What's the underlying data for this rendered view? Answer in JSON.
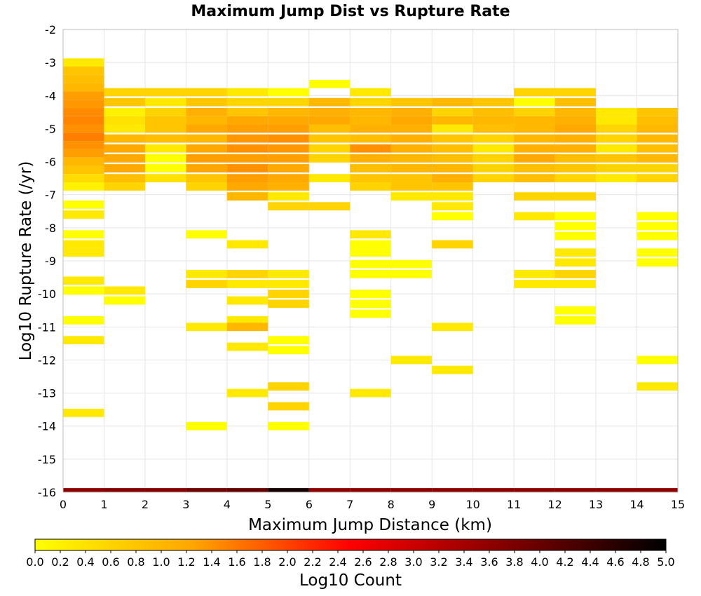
{
  "chart_data": {
    "type": "heatmap",
    "title": "Maximum Jump Dist vs Rupture Rate",
    "xlabel": "Maximum Jump Distance (km)",
    "ylabel": "Log10 Rupture Rate (/yr)",
    "xlim": [
      0,
      15
    ],
    "ylim": [
      -16,
      -2
    ],
    "x_ticks": [
      0,
      1,
      2,
      3,
      4,
      5,
      6,
      7,
      8,
      9,
      10,
      11,
      12,
      13,
      14,
      15
    ],
    "y_ticks": [
      -2,
      -3,
      -4,
      -5,
      -6,
      -7,
      -8,
      -9,
      -10,
      -11,
      -12,
      -13,
      -14,
      -15,
      -16
    ],
    "grid": true,
    "colorbar": {
      "label": "Log10 Count",
      "min": 0.0,
      "max": 5.0,
      "ticks": [
        "0.0",
        "0.2",
        "0.4",
        "0.6",
        "0.8",
        "1.0",
        "1.2",
        "1.4",
        "1.6",
        "1.8",
        "2.0",
        "2.2",
        "2.4",
        "2.6",
        "2.8",
        "3.0",
        "3.2",
        "3.4",
        "3.6",
        "3.8",
        "4.0",
        "4.2",
        "4.4",
        "4.6",
        "4.8",
        "5.0"
      ],
      "colors": [
        "#ffff00",
        "#ffa500",
        "#ff0000",
        "#800000",
        "#000000"
      ],
      "placement": "bottom"
    },
    "bin_height": 0.25,
    "columns": [
      {
        "x": 0,
        "cells": [
          [
            -3.0,
            0.3
          ],
          [
            -3.25,
            0.8
          ],
          [
            -3.5,
            0.9
          ],
          [
            -3.75,
            1.0
          ],
          [
            -4.0,
            1.3
          ],
          [
            -4.25,
            1.35
          ],
          [
            -4.5,
            1.45
          ],
          [
            -4.75,
            1.5
          ],
          [
            -5.0,
            1.4
          ],
          [
            -5.25,
            1.55
          ],
          [
            -5.5,
            1.4
          ],
          [
            -5.75,
            1.3
          ],
          [
            -6.0,
            1.0
          ],
          [
            -6.25,
            0.8
          ],
          [
            -6.5,
            0.5
          ],
          [
            -6.75,
            0.2
          ],
          [
            -7.3,
            0.0
          ],
          [
            -7.6,
            0.3
          ],
          [
            -8.2,
            0.0
          ],
          [
            -8.5,
            0.3
          ],
          [
            -8.75,
            0.3
          ],
          [
            -9.6,
            0.3
          ],
          [
            -9.9,
            0.0
          ],
          [
            -10.8,
            0.0
          ],
          [
            -11.4,
            0.3
          ],
          [
            -13.6,
            0.3
          ],
          [
            -16.0,
            3.6
          ]
        ]
      },
      {
        "x": 1,
        "cells": [
          [
            -3.9,
            0.6
          ],
          [
            -4.2,
            0.8
          ],
          [
            -4.5,
            0.2
          ],
          [
            -4.75,
            0.4
          ],
          [
            -5.0,
            0.3
          ],
          [
            -5.3,
            1.0
          ],
          [
            -5.6,
            1.2
          ],
          [
            -5.9,
            1.2
          ],
          [
            -6.2,
            1.2
          ],
          [
            -6.5,
            0.9
          ],
          [
            -6.75,
            0.6
          ],
          [
            -9.9,
            0.3
          ],
          [
            -10.2,
            0.0
          ],
          [
            -16.0,
            3.7
          ]
        ]
      },
      {
        "x": 2,
        "cells": [
          [
            -3.9,
            0.6
          ],
          [
            -4.2,
            0.3
          ],
          [
            -4.5,
            0.6
          ],
          [
            -4.75,
            0.8
          ],
          [
            -5.0,
            0.8
          ],
          [
            -5.3,
            0.9
          ],
          [
            -5.6,
            0.3
          ],
          [
            -5.9,
            0.0
          ],
          [
            -6.2,
            0.0
          ],
          [
            -6.5,
            0.4
          ],
          [
            -16.0,
            3.7
          ]
        ]
      },
      {
        "x": 3,
        "cells": [
          [
            -3.9,
            0.6
          ],
          [
            -4.2,
            0.8
          ],
          [
            -4.5,
            1.1
          ],
          [
            -4.75,
            1.0
          ],
          [
            -5.0,
            1.2
          ],
          [
            -5.3,
            1.0
          ],
          [
            -5.6,
            1.2
          ],
          [
            -5.9,
            1.3
          ],
          [
            -6.2,
            1.25
          ],
          [
            -6.5,
            0.8
          ],
          [
            -6.75,
            0.6
          ],
          [
            -8.2,
            0.0
          ],
          [
            -9.4,
            0.3
          ],
          [
            -9.7,
            0.6
          ],
          [
            -11.0,
            0.3
          ],
          [
            -14.0,
            0.0
          ],
          [
            -16.0,
            3.9
          ]
        ]
      },
      {
        "x": 4,
        "cells": [
          [
            -3.9,
            0.3
          ],
          [
            -4.2,
            0.6
          ],
          [
            -4.5,
            0.8
          ],
          [
            -4.75,
            1.2
          ],
          [
            -5.0,
            1.3
          ],
          [
            -5.3,
            1.35
          ],
          [
            -5.6,
            1.4
          ],
          [
            -5.9,
            1.3
          ],
          [
            -6.2,
            1.4
          ],
          [
            -6.5,
            1.3
          ],
          [
            -6.75,
            1.2
          ],
          [
            -7.05,
            1.0
          ],
          [
            -8.5,
            0.3
          ],
          [
            -9.4,
            0.6
          ],
          [
            -9.7,
            0.3
          ],
          [
            -10.2,
            0.3
          ],
          [
            -10.8,
            0.3
          ],
          [
            -11.0,
            1.0
          ],
          [
            -11.6,
            0.3
          ],
          [
            -13.0,
            0.3
          ],
          [
            -16.0,
            4.0
          ]
        ]
      },
      {
        "x": 5,
        "cells": [
          [
            -3.9,
            0.0
          ],
          [
            -4.2,
            0.6
          ],
          [
            -4.5,
            1.0
          ],
          [
            -4.75,
            1.2
          ],
          [
            -5.0,
            1.3
          ],
          [
            -5.3,
            1.4
          ],
          [
            -5.6,
            1.35
          ],
          [
            -5.9,
            1.3
          ],
          [
            -6.2,
            1.2
          ],
          [
            -6.5,
            1.2
          ],
          [
            -6.75,
            1.1
          ],
          [
            -7.05,
            0.3
          ],
          [
            -7.35,
            0.6
          ],
          [
            -9.4,
            0.3
          ],
          [
            -9.7,
            0.3
          ],
          [
            -10.0,
            0.6
          ],
          [
            -10.3,
            0.6
          ],
          [
            -11.4,
            0.0
          ],
          [
            -11.7,
            0.0
          ],
          [
            -12.8,
            0.6
          ],
          [
            -13.4,
            0.6
          ],
          [
            -14.0,
            0.0
          ],
          [
            -16.0,
            4.8
          ]
        ]
      },
      {
        "x": 6,
        "cells": [
          [
            -3.65,
            0.0
          ],
          [
            -4.2,
            1.0
          ],
          [
            -4.5,
            1.1
          ],
          [
            -4.75,
            1.2
          ],
          [
            -5.0,
            0.9
          ],
          [
            -5.3,
            0.8
          ],
          [
            -5.6,
            0.6
          ],
          [
            -5.9,
            0.6
          ],
          [
            -6.5,
            0.3
          ],
          [
            -7.35,
            0.6
          ],
          [
            -16.0,
            3.6
          ]
        ]
      },
      {
        "x": 7,
        "cells": [
          [
            -3.9,
            0.3
          ],
          [
            -4.2,
            0.6
          ],
          [
            -4.5,
            1.0
          ],
          [
            -4.75,
            1.0
          ],
          [
            -5.0,
            1.1
          ],
          [
            -5.3,
            0.9
          ],
          [
            -5.6,
            1.4
          ],
          [
            -5.9,
            1.1
          ],
          [
            -6.2,
            0.9
          ],
          [
            -6.5,
            0.8
          ],
          [
            -6.75,
            0.6
          ],
          [
            -8.2,
            0.3
          ],
          [
            -8.5,
            0.0
          ],
          [
            -8.75,
            0.0
          ],
          [
            -9.1,
            0.0
          ],
          [
            -9.4,
            0.0
          ],
          [
            -10.0,
            0.0
          ],
          [
            -10.3,
            0.0
          ],
          [
            -10.6,
            0.0
          ],
          [
            -13.0,
            0.3
          ],
          [
            -16.0,
            3.6
          ]
        ]
      },
      {
        "x": 8,
        "cells": [
          [
            -4.2,
            0.8
          ],
          [
            -4.5,
            1.1
          ],
          [
            -4.75,
            1.2
          ],
          [
            -5.0,
            1.1
          ],
          [
            -5.3,
            1.1
          ],
          [
            -5.6,
            1.1
          ],
          [
            -5.9,
            1.0
          ],
          [
            -6.2,
            1.0
          ],
          [
            -6.5,
            0.8
          ],
          [
            -6.75,
            0.8
          ],
          [
            -7.05,
            0.3
          ],
          [
            -9.1,
            0.0
          ],
          [
            -9.4,
            0.0
          ],
          [
            -12.0,
            0.3
          ],
          [
            -16.0,
            3.6
          ]
        ]
      },
      {
        "x": 9,
        "cells": [
          [
            -4.2,
            1.0
          ],
          [
            -4.5,
            0.6
          ],
          [
            -4.75,
            1.0
          ],
          [
            -5.0,
            0.3
          ],
          [
            -5.3,
            0.8
          ],
          [
            -5.6,
            0.9
          ],
          [
            -5.9,
            0.9
          ],
          [
            -6.2,
            1.0
          ],
          [
            -6.5,
            1.1
          ],
          [
            -6.75,
            0.8
          ],
          [
            -7.05,
            0.3
          ],
          [
            -7.35,
            0.3
          ],
          [
            -7.65,
            0.0
          ],
          [
            -8.5,
            0.6
          ],
          [
            -11.0,
            0.3
          ],
          [
            -12.3,
            0.3
          ],
          [
            -16.0,
            3.6
          ]
        ]
      },
      {
        "x": 10,
        "cells": [
          [
            -4.2,
            0.8
          ],
          [
            -4.5,
            0.9
          ],
          [
            -4.75,
            1.0
          ],
          [
            -5.0,
            0.9
          ],
          [
            -5.3,
            0.6
          ],
          [
            -5.6,
            0.3
          ],
          [
            -5.9,
            0.6
          ],
          [
            -6.2,
            0.6
          ],
          [
            -6.5,
            0.6
          ],
          [
            -16.0,
            3.6
          ]
        ]
      },
      {
        "x": 11,
        "cells": [
          [
            -3.9,
            0.6
          ],
          [
            -4.2,
            0.0
          ],
          [
            -4.5,
            0.6
          ],
          [
            -4.75,
            1.0
          ],
          [
            -5.0,
            1.0
          ],
          [
            -5.3,
            1.0
          ],
          [
            -5.6,
            1.1
          ],
          [
            -5.9,
            1.2
          ],
          [
            -6.2,
            0.9
          ],
          [
            -6.5,
            0.9
          ],
          [
            -7.05,
            0.6
          ],
          [
            -7.65,
            0.3
          ],
          [
            -9.4,
            0.3
          ],
          [
            -9.7,
            0.3
          ],
          [
            -16.0,
            3.6
          ]
        ]
      },
      {
        "x": 12,
        "cells": [
          [
            -3.9,
            0.6
          ],
          [
            -4.2,
            0.9
          ],
          [
            -4.5,
            1.0
          ],
          [
            -4.75,
            1.1
          ],
          [
            -5.0,
            1.2
          ],
          [
            -5.3,
            1.1
          ],
          [
            -5.6,
            1.1
          ],
          [
            -5.9,
            0.9
          ],
          [
            -6.2,
            0.8
          ],
          [
            -6.5,
            0.6
          ],
          [
            -7.05,
            0.6
          ],
          [
            -7.65,
            0.0
          ],
          [
            -7.95,
            0.0
          ],
          [
            -8.25,
            0.0
          ],
          [
            -8.75,
            0.3
          ],
          [
            -9.05,
            0.3
          ],
          [
            -9.4,
            0.6
          ],
          [
            -9.7,
            0.3
          ],
          [
            -10.5,
            0.0
          ],
          [
            -10.8,
            0.0
          ],
          [
            -16.0,
            3.6
          ]
        ]
      },
      {
        "x": 13,
        "cells": [
          [
            -4.5,
            0.3
          ],
          [
            -4.75,
            0.3
          ],
          [
            -5.0,
            0.6
          ],
          [
            -5.3,
            0.6
          ],
          [
            -5.6,
            0.3
          ],
          [
            -5.9,
            0.8
          ],
          [
            -6.2,
            0.6
          ],
          [
            -6.5,
            0.3
          ],
          [
            -16.0,
            3.6
          ]
        ]
      },
      {
        "x": 14,
        "cells": [
          [
            -4.5,
            0.8
          ],
          [
            -4.75,
            0.9
          ],
          [
            -5.0,
            1.0
          ],
          [
            -5.3,
            1.0
          ],
          [
            -5.6,
            0.9
          ],
          [
            -5.9,
            1.0
          ],
          [
            -6.2,
            0.6
          ],
          [
            -6.5,
            0.6
          ],
          [
            -7.65,
            0.0
          ],
          [
            -7.95,
            0.0
          ],
          [
            -8.25,
            0.0
          ],
          [
            -8.75,
            0.0
          ],
          [
            -9.05,
            0.0
          ],
          [
            -12.0,
            0.0
          ],
          [
            -12.8,
            0.3
          ],
          [
            -16.0,
            3.6
          ]
        ]
      }
    ]
  }
}
